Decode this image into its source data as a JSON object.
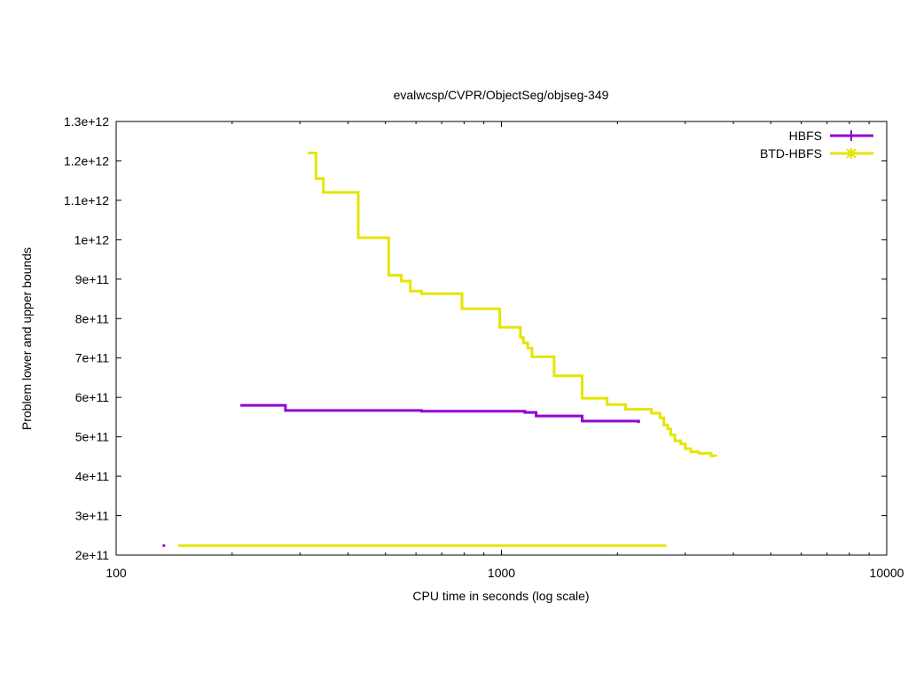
{
  "chart_data": {
    "type": "line",
    "title": "evalwcsp/CVPR/ObjectSeg/objseg-349",
    "xlabel": "CPU time in seconds (log scale)",
    "ylabel": "Problem lower and upper bounds",
    "x_scale": "log",
    "xlim": [
      100,
      10000
    ],
    "ylim": [
      200000000000,
      1300000000000
    ],
    "x_ticks": [
      100,
      1000,
      10000
    ],
    "x_tick_labels": [
      "100",
      "1000",
      "10000"
    ],
    "y_ticks": [
      200000000000,
      300000000000,
      400000000000,
      500000000000,
      600000000000,
      700000000000,
      800000000000,
      900000000000,
      1000000000000,
      1100000000000,
      1200000000000,
      1300000000000
    ],
    "y_tick_labels": [
      "2e+11",
      "3e+11",
      "4e+11",
      "5e+11",
      "6e+11",
      "7e+11",
      "8e+11",
      "9e+11",
      "1e+12",
      "1.1e+12",
      "1.2e+12",
      "1.3e+12"
    ],
    "grid": false,
    "legend_position": "top-right",
    "series": [
      {
        "name": "HBFS",
        "color": "#9400d3",
        "marker": "plus",
        "upper": [
          [
            210,
            580000000000
          ],
          [
            275,
            567000000000
          ],
          [
            620,
            565000000000
          ],
          [
            1150,
            562000000000
          ],
          [
            1230,
            553000000000
          ],
          [
            1620,
            540000000000
          ],
          [
            2270,
            535000000000
          ]
        ],
        "lower": [
          [
            132,
            224000000000
          ],
          [
            134,
            224000000000
          ]
        ]
      },
      {
        "name": "BTD-HBFS",
        "color": "#e5e500",
        "marker": "star",
        "upper": [
          [
            315,
            1220000000000
          ],
          [
            330,
            1155000000000
          ],
          [
            345,
            1120000000000
          ],
          [
            425,
            1005000000000
          ],
          [
            510,
            910000000000
          ],
          [
            550,
            895000000000
          ],
          [
            580,
            870000000000
          ],
          [
            620,
            863000000000
          ],
          [
            790,
            825000000000
          ],
          [
            990,
            778000000000
          ],
          [
            1120,
            752000000000
          ],
          [
            1140,
            738000000000
          ],
          [
            1170,
            725000000000
          ],
          [
            1200,
            703000000000
          ],
          [
            1370,
            655000000000
          ],
          [
            1620,
            598000000000
          ],
          [
            1880,
            582000000000
          ],
          [
            2100,
            570000000000
          ],
          [
            2450,
            560000000000
          ],
          [
            2580,
            548000000000
          ],
          [
            2640,
            530000000000
          ],
          [
            2700,
            520000000000
          ],
          [
            2750,
            505000000000
          ],
          [
            2820,
            490000000000
          ],
          [
            2920,
            482000000000
          ],
          [
            3000,
            470000000000
          ],
          [
            3100,
            462000000000
          ],
          [
            3250,
            458000000000
          ],
          [
            3500,
            452000000000
          ],
          [
            3600,
            450000000000
          ]
        ],
        "lower": [
          [
            145,
            224000000000
          ],
          [
            2680,
            224000000000
          ]
        ]
      }
    ]
  }
}
